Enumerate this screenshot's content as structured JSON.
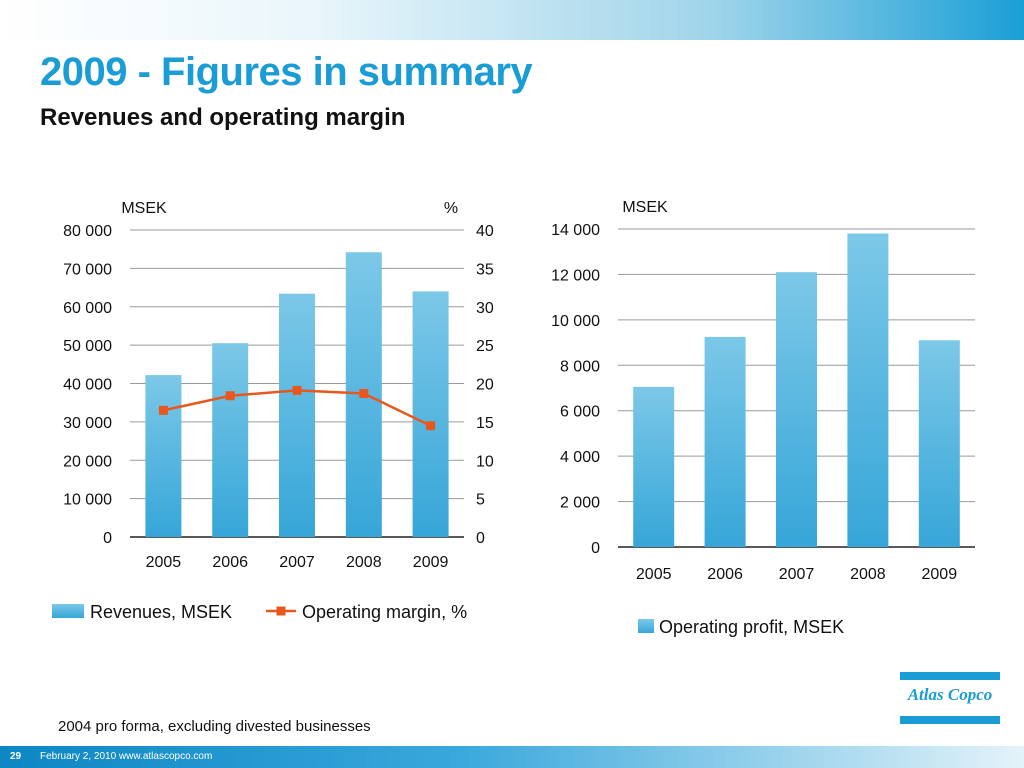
{
  "header": {
    "title": "2009 - Figures in summary",
    "subtitle": "Revenues and operating margin"
  },
  "chart_data": [
    {
      "type": "bar",
      "categories": [
        "2005",
        "2006",
        "2007",
        "2008",
        "2009"
      ],
      "series": [
        {
          "name": "Revenues, MSEK",
          "type": "bar",
          "axis": "left",
          "values": [
            42200,
            50500,
            63400,
            74200,
            64000
          ],
          "color": "#5bb8e0"
        },
        {
          "name": "Operating margin, %",
          "type": "line",
          "axis": "right",
          "values": [
            16.5,
            18.4,
            19.1,
            18.7,
            14.5
          ],
          "color": "#e8581e"
        }
      ],
      "y_left": {
        "label": "MSEK",
        "ticks": [
          "0",
          "10 000",
          "20 000",
          "30 000",
          "40 000",
          "50 000",
          "60 000",
          "70 000",
          "80 000"
        ],
        "ylim": [
          0,
          80000
        ]
      },
      "y_right": {
        "label": "%",
        "ticks": [
          "0",
          "5",
          "10",
          "15",
          "20",
          "25",
          "30",
          "35",
          "40"
        ],
        "ylim": [
          0,
          40
        ]
      },
      "grid": true,
      "legend": "bottom"
    },
    {
      "type": "bar",
      "categories": [
        "2005",
        "2006",
        "2007",
        "2008",
        "2009"
      ],
      "series": [
        {
          "name": "Operating profit, MSEK",
          "values": [
            7050,
            9250,
            12100,
            13800,
            9100
          ],
          "color": "#5bb8e0"
        }
      ],
      "y_left": {
        "label": "MSEK",
        "ticks": [
          "0",
          "2 000",
          "4 000",
          "6 000",
          "8 000",
          "10 000",
          "12 000",
          "14 000"
        ],
        "ylim": [
          0,
          14000
        ]
      },
      "grid": true,
      "legend": "bottom"
    }
  ],
  "footnote": "2004 pro forma, excluding divested businesses",
  "footer": {
    "page_number": "29",
    "text": "February 2, 2010  www.atlascopco.com"
  },
  "logo": {
    "text": "Atlas Copco"
  }
}
